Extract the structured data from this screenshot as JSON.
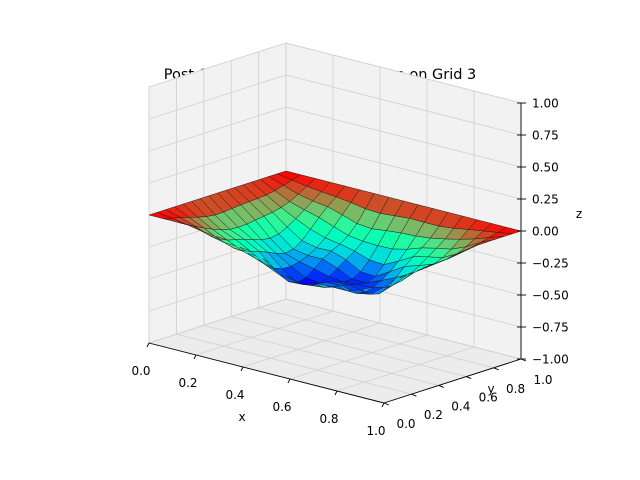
{
  "chart_data": {
    "type": "surface3d",
    "title": "Post-Sweep of Error to Correction on Grid 3",
    "xlabel": "x",
    "ylabel": "y",
    "zlabel": "z",
    "xlim": [
      0.0,
      1.0
    ],
    "ylim": [
      0.0,
      1.0
    ],
    "zlim": [
      -1.0,
      1.0
    ],
    "x_ticks": [
      "0.0",
      "0.2",
      "0.4",
      "0.6",
      "0.8",
      "1.0"
    ],
    "y_ticks": [
      "0.0",
      "0.2",
      "0.4",
      "0.6",
      "0.8",
      "1.0"
    ],
    "z_ticks": [
      "−1.00",
      "−0.75",
      "−0.50",
      "−0.25",
      "0.00",
      "0.25",
      "0.50",
      "0.75",
      "1.00"
    ],
    "grid": true,
    "colormap": "rainbow",
    "grid_points": 17,
    "surface_min": -0.5,
    "surface_max": 0.0
  }
}
